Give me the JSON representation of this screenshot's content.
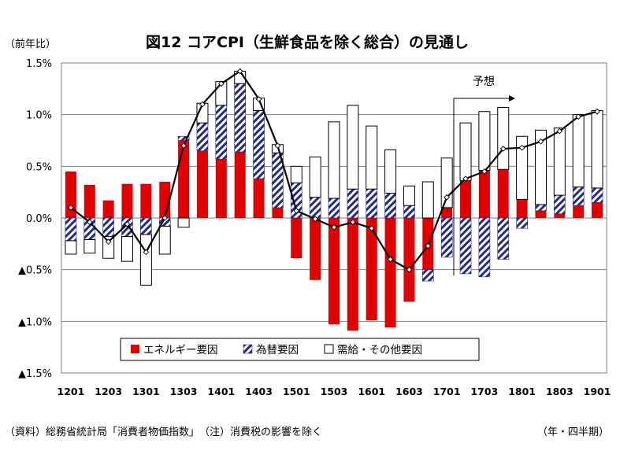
{
  "ylabel": "（前年比）",
  "title": "図12  コアCPI（生鮮食品を除く総合）の見通し",
  "forecast_label": "予想",
  "source_note": "（資料）総務省統計局「消費者物価指数」　（注）消費税の影響を除く",
  "xaxis_unit": "（年・四半期）",
  "colors": {
    "energy": "#e00000",
    "fx_stripe": "#1f2a8c",
    "line": "#000000",
    "grid": "#808080"
  },
  "chart_data": {
    "type": "bar",
    "stacked": true,
    "categories": [
      "1201",
      "1202",
      "1203",
      "1204",
      "1301",
      "1302",
      "1303",
      "1304",
      "1401",
      "1402",
      "1403",
      "1404",
      "1501",
      "1502",
      "1503",
      "1504",
      "1601",
      "1602",
      "1603",
      "1604",
      "1701",
      "1702",
      "1703",
      "1704",
      "1801",
      "1802",
      "1803",
      "1804",
      "1901"
    ],
    "tick_labels": [
      "1201",
      "1203",
      "1301",
      "1303",
      "1401",
      "1403",
      "1501",
      "1503",
      "1601",
      "1603",
      "1701",
      "1703",
      "1801",
      "1803",
      "1901"
    ],
    "ylim": [
      -1.5,
      1.5
    ],
    "ytick_labels": [
      "1.5%",
      "1.0%",
      "0.5%",
      "0.0%",
      "▲0.5%",
      "▲1.0%",
      "▲1.5%"
    ],
    "ytick_values": [
      1.5,
      1.0,
      0.5,
      0.0,
      -0.5,
      -1.0,
      -1.5
    ],
    "forecast_start": "1702",
    "legend_position": "bottom-center",
    "series": [
      {
        "name": "エネルギー要因",
        "kind": "solid",
        "values": [
          0.45,
          0.32,
          0.17,
          0.33,
          0.33,
          0.35,
          0.75,
          0.65,
          0.57,
          0.64,
          0.38,
          0.1,
          -0.39,
          -0.6,
          -1.03,
          -1.09,
          -0.99,
          -1.06,
          -0.81,
          -0.5,
          0.1,
          0.36,
          0.46,
          0.47,
          0.18,
          0.07,
          0.04,
          0.12,
          0.15
        ]
      },
      {
        "name": "為替要因",
        "kind": "hatch",
        "values": [
          -0.22,
          -0.21,
          -0.18,
          -0.18,
          -0.16,
          -0.08,
          0.04,
          0.27,
          0.52,
          0.66,
          0.66,
          0.53,
          0.34,
          0.2,
          0.19,
          0.28,
          0.28,
          0.24,
          0.12,
          -0.11,
          -0.38,
          -0.54,
          -0.57,
          -0.4,
          -0.1,
          0.06,
          0.18,
          0.18,
          0.14
        ]
      },
      {
        "name": "需給・その他要因",
        "kind": "outline",
        "values": [
          -0.13,
          -0.13,
          -0.21,
          -0.24,
          -0.49,
          -0.27,
          -0.09,
          0.19,
          0.23,
          0.12,
          0.12,
          0.08,
          0.16,
          0.39,
          0.74,
          0.81,
          0.61,
          0.42,
          0.19,
          0.35,
          0.48,
          0.56,
          0.57,
          0.6,
          0.61,
          0.72,
          0.65,
          0.7,
          0.75
        ]
      }
    ],
    "line": {
      "name": "コアCPI",
      "values": [
        0.1,
        -0.04,
        -0.23,
        -0.06,
        -0.33,
        0.0,
        0.7,
        1.1,
        1.3,
        1.42,
        1.15,
        0.7,
        0.07,
        -0.01,
        -0.09,
        -0.04,
        -0.1,
        -0.4,
        -0.5,
        -0.27,
        0.2,
        0.38,
        0.45,
        0.67,
        0.68,
        0.74,
        0.84,
        0.98,
        1.03
      ]
    }
  }
}
